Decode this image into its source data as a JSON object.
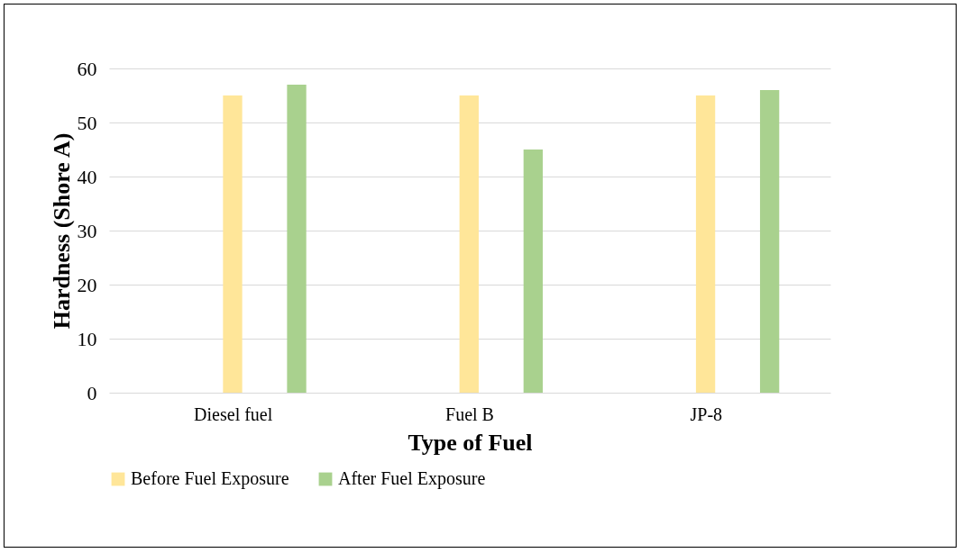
{
  "chart_data": {
    "type": "bar",
    "xlabel": "Type of Fuel",
    "ylabel": "Hardness (Shore A)",
    "categories": [
      "Diesel fuel",
      "Fuel B",
      "JP-8"
    ],
    "series": [
      {
        "name": "Before Fuel Exposure",
        "color": "#ffe699",
        "values": [
          55,
          55,
          55
        ]
      },
      {
        "name": "After Fuel Exposure",
        "color": "#a9d18e",
        "values": [
          57,
          45,
          56
        ]
      }
    ],
    "ylim": [
      0,
      60
    ],
    "yticks": [
      0,
      10,
      20,
      30,
      40,
      50,
      60
    ],
    "grid": "y",
    "legend": "bottom"
  }
}
